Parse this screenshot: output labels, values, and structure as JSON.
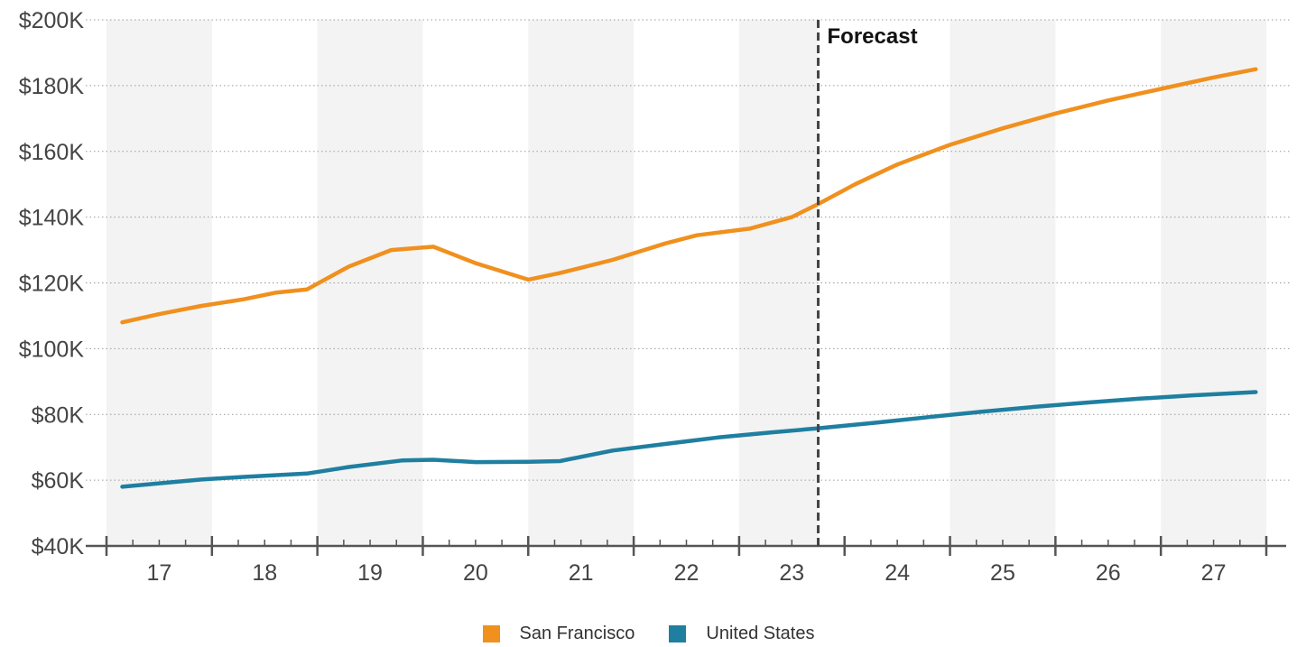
{
  "chart_data": {
    "type": "line",
    "title": "",
    "xlabel": "",
    "ylabel": "",
    "categories": [
      "17",
      "18",
      "19",
      "20",
      "21",
      "22",
      "23",
      "24",
      "25",
      "26",
      "27"
    ],
    "y_ticks": [
      "$40K",
      "$60K",
      "$80K",
      "$100K",
      "$120K",
      "$140K",
      "$160K",
      "$180K",
      "$200K"
    ],
    "ylim": [
      40000,
      200000
    ],
    "xlim": [
      2016.5,
      2027.5
    ],
    "grid": "horizontal dotted",
    "legend_position": "bottom-center",
    "annotation": {
      "text": "Forecast",
      "x": 2023.25
    },
    "series": [
      {
        "name": "San Francisco",
        "color": "#F0901E",
        "points": [
          [
            2016.65,
            108000
          ],
          [
            2017.0,
            110500
          ],
          [
            2017.4,
            113000
          ],
          [
            2017.8,
            115000
          ],
          [
            2018.1,
            117000
          ],
          [
            2018.4,
            118000
          ],
          [
            2018.8,
            125000
          ],
          [
            2019.2,
            130000
          ],
          [
            2019.6,
            131000
          ],
          [
            2020.0,
            126000
          ],
          [
            2020.5,
            121000
          ],
          [
            2020.8,
            123000
          ],
          [
            2021.3,
            127000
          ],
          [
            2021.8,
            132000
          ],
          [
            2022.1,
            134500
          ],
          [
            2022.6,
            136500
          ],
          [
            2023.0,
            140000
          ],
          [
            2023.25,
            144000
          ],
          [
            2023.6,
            150000
          ],
          [
            2024.0,
            156000
          ],
          [
            2024.5,
            162000
          ],
          [
            2025.0,
            167000
          ],
          [
            2025.5,
            171500
          ],
          [
            2026.0,
            175500
          ],
          [
            2026.5,
            179000
          ],
          [
            2027.0,
            182500
          ],
          [
            2027.4,
            185000
          ]
        ]
      },
      {
        "name": "United States",
        "color": "#1F7FA0",
        "points": [
          [
            2016.65,
            58000
          ],
          [
            2017.4,
            60200
          ],
          [
            2017.8,
            61000
          ],
          [
            2018.4,
            62000
          ],
          [
            2018.8,
            64000
          ],
          [
            2019.3,
            66000
          ],
          [
            2019.6,
            66200
          ],
          [
            2020.0,
            65500
          ],
          [
            2020.5,
            65600
          ],
          [
            2020.8,
            65800
          ],
          [
            2021.3,
            69000
          ],
          [
            2021.8,
            71000
          ],
          [
            2022.3,
            73000
          ],
          [
            2022.8,
            74500
          ],
          [
            2023.25,
            75800
          ],
          [
            2023.8,
            77500
          ],
          [
            2024.3,
            79200
          ],
          [
            2024.8,
            80800
          ],
          [
            2025.3,
            82300
          ],
          [
            2025.8,
            83600
          ],
          [
            2026.3,
            84800
          ],
          [
            2026.8,
            85800
          ],
          [
            2027.4,
            86800
          ]
        ]
      }
    ]
  }
}
